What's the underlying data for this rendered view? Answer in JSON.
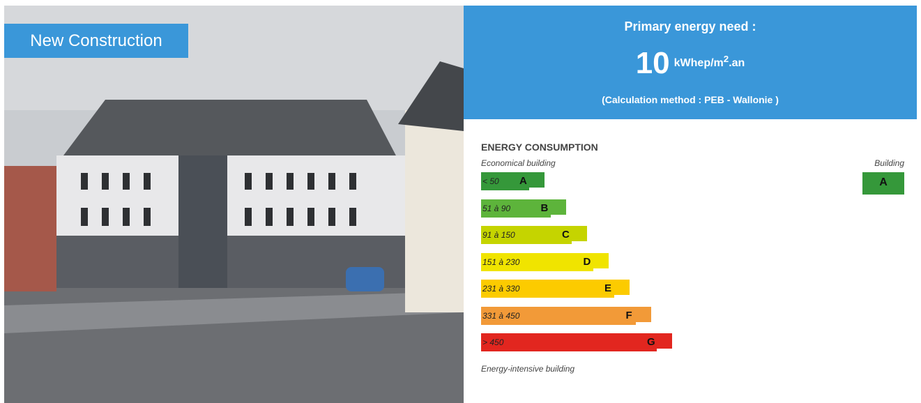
{
  "photo": {
    "badge": "New Construction"
  },
  "summary": {
    "title": "Primary energy need :",
    "value": 10,
    "unit": "kWhep/m",
    "unit_sup": "2",
    "unit_suffix": ".an",
    "method": "(Calculation method : PEB - Wallonie )"
  },
  "label": {
    "title": "ENERGY CONSUMPTION",
    "top_note": "Economical building",
    "bottom_note": "Energy-intensive building",
    "building_heading": "Building",
    "building_class": "A",
    "building_color": "#35983a",
    "classes": [
      {
        "range": "< 50",
        "letter": "A",
        "color": "#35983a"
      },
      {
        "range": "51 à 90",
        "letter": "B",
        "color": "#5db43b"
      },
      {
        "range": "91 à 150",
        "letter": "C",
        "color": "#c5d400"
      },
      {
        "range": "151 à 230",
        "letter": "D",
        "color": "#f0e400"
      },
      {
        "range": "231 à 330",
        "letter": "E",
        "color": "#fccb00"
      },
      {
        "range": "331 à 450",
        "letter": "F",
        "color": "#f29a38"
      },
      {
        "range": "> 450",
        "letter": "G",
        "color": "#e2261f"
      }
    ]
  }
}
